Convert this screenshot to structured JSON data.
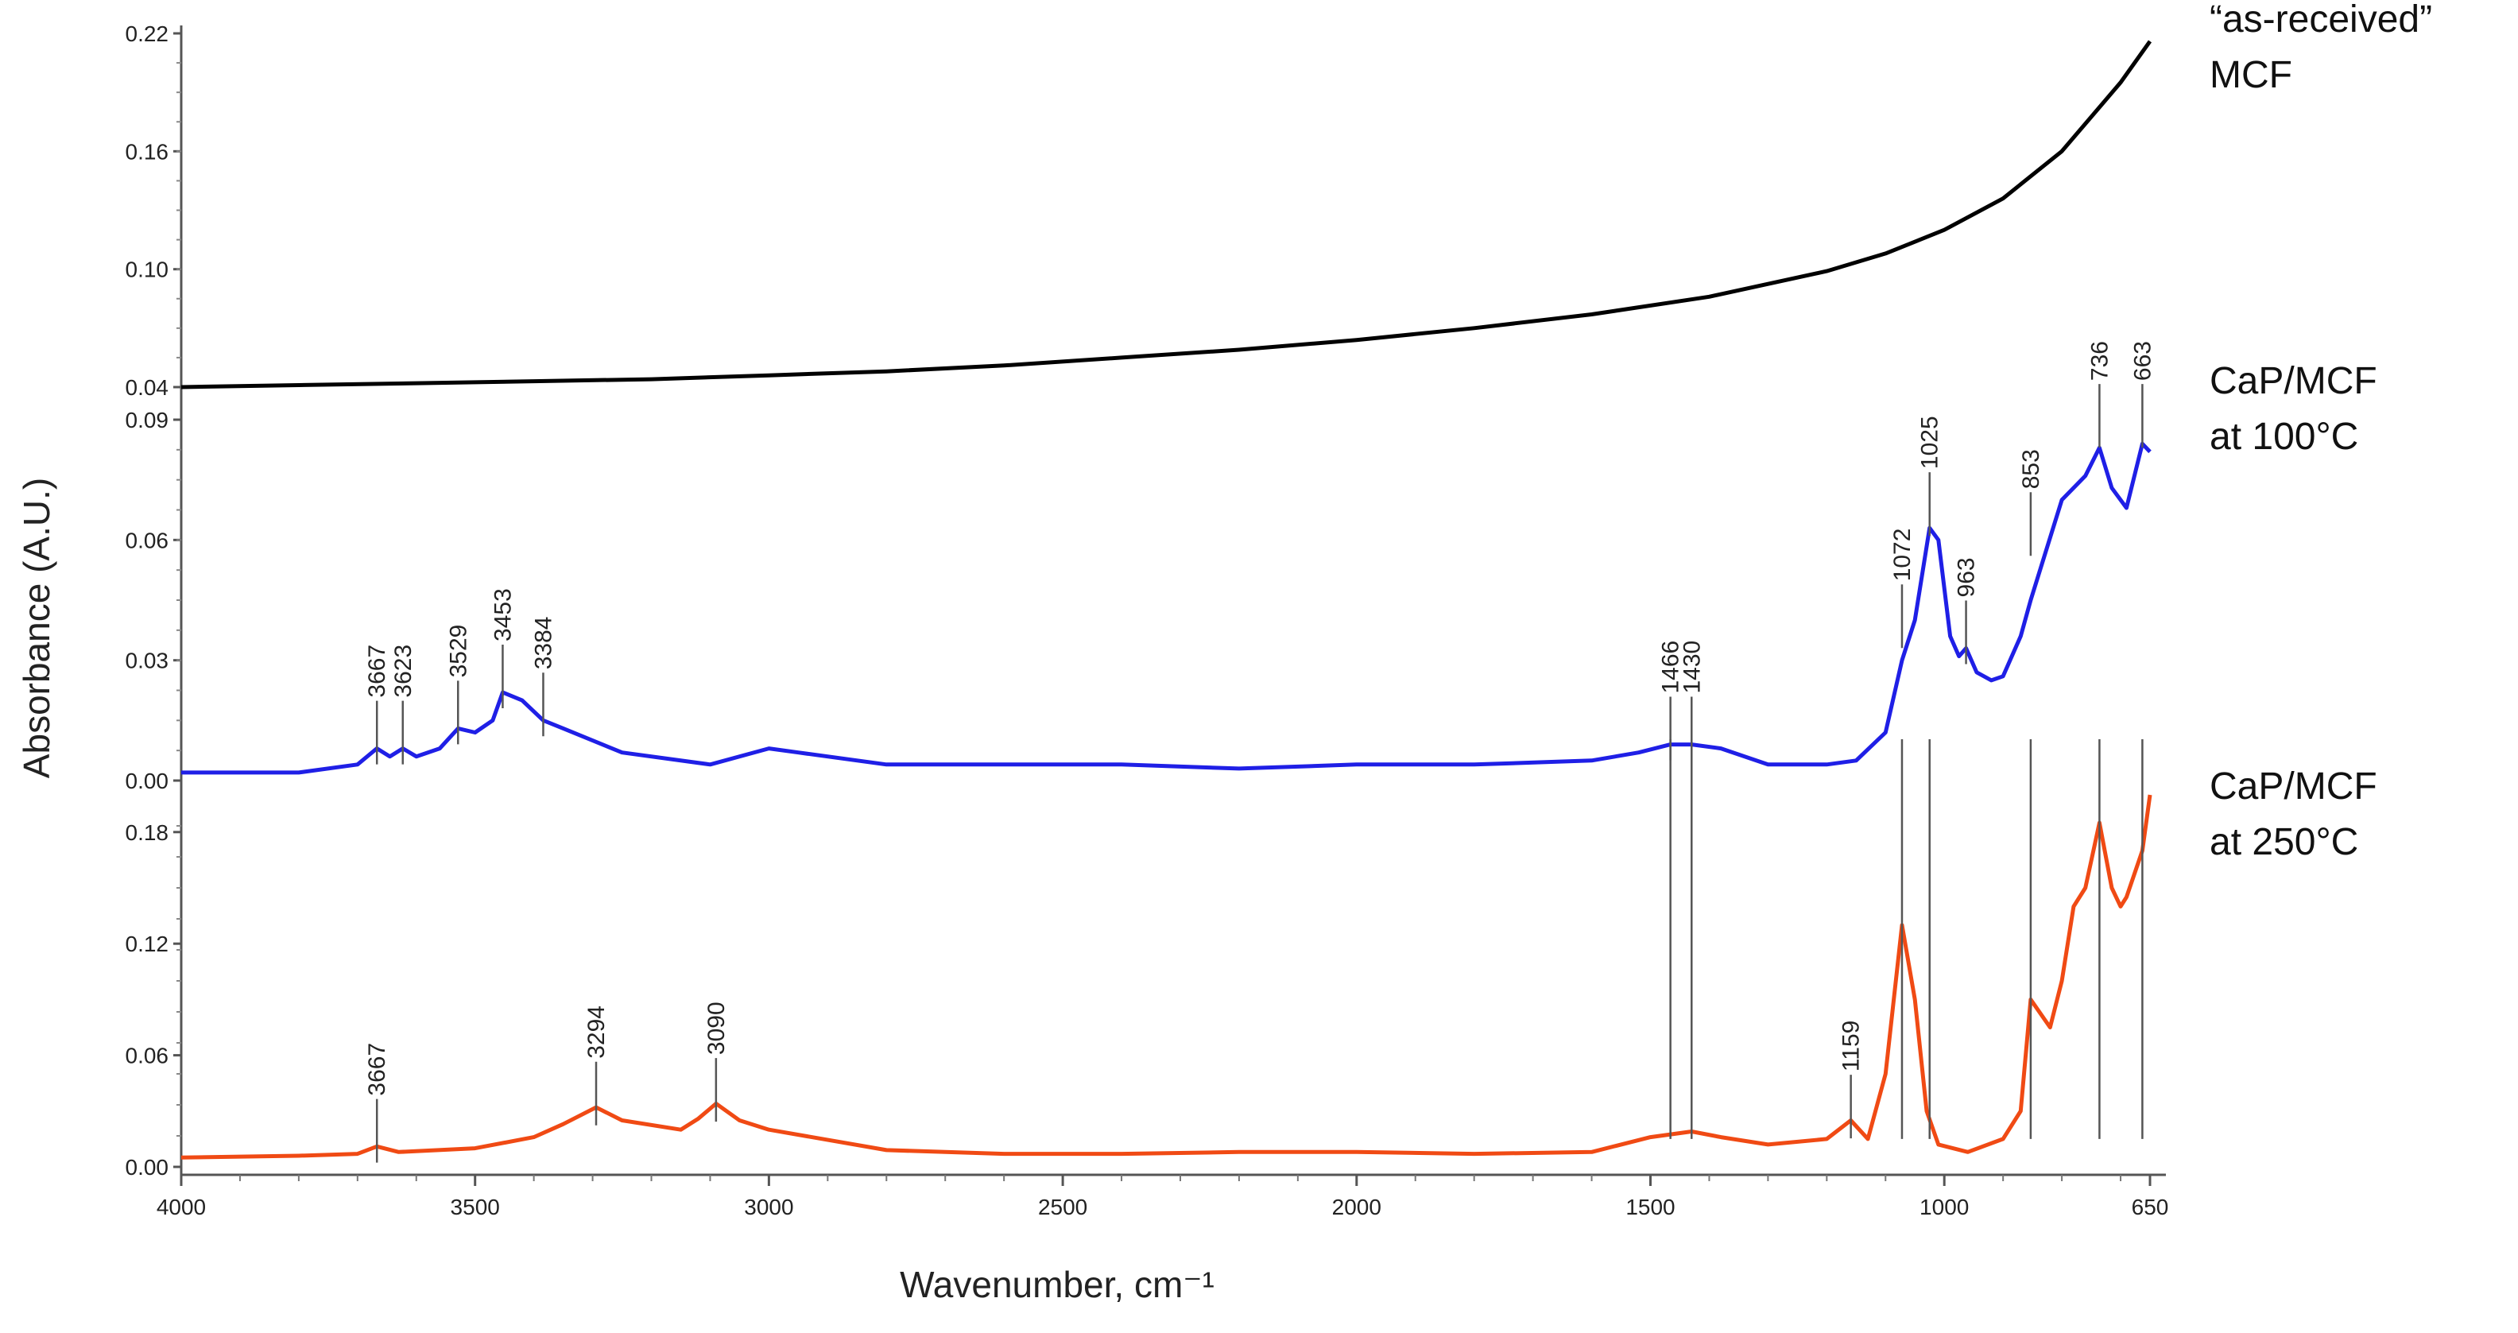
{
  "chart_data": {
    "type": "line",
    "xlabel": "Wavenumber, cm⁻¹",
    "ylabel": "Absorbance (A.U.)",
    "x_range": [
      4000,
      650
    ],
    "x_ticks": [
      4000,
      3500,
      3000,
      2500,
      2000,
      1500,
      1000,
      650
    ],
    "panels": [
      {
        "name": "“as-received” MCF",
        "label_lines": [
          "“as-received”",
          "MCF"
        ],
        "color": "#000000",
        "ylim": [
          0.04,
          0.22
        ],
        "y_ticks": [
          "0.04",
          "0.10",
          "0.16",
          "0.22"
        ],
        "x": [
          4000,
          3800,
          3600,
          3400,
          3200,
          3000,
          2800,
          2600,
          2400,
          2200,
          2000,
          1800,
          1600,
          1400,
          1200,
          1100,
          1000,
          900,
          800,
          700,
          650
        ],
        "y": [
          0.04,
          0.041,
          0.042,
          0.043,
          0.044,
          0.046,
          0.048,
          0.051,
          0.055,
          0.059,
          0.064,
          0.07,
          0.077,
          0.086,
          0.099,
          0.108,
          0.12,
          0.136,
          0.16,
          0.195,
          0.216
        ],
        "peaks": []
      },
      {
        "name": "CaP/MCF at 100°C",
        "label_lines": [
          "CaP/MCF",
          "at 100°C"
        ],
        "color": "#1f1fe6",
        "ylim": [
          0.0,
          0.09
        ],
        "y_ticks": [
          "0.00",
          "0.03",
          "0.06",
          "0.09"
        ],
        "x": [
          4000,
          3800,
          3700,
          3667,
          3645,
          3623,
          3600,
          3560,
          3529,
          3500,
          3470,
          3453,
          3420,
          3384,
          3350,
          3250,
          3100,
          3000,
          2950,
          2800,
          2600,
          2400,
          2200,
          2000,
          1800,
          1600,
          1520,
          1466,
          1430,
          1380,
          1300,
          1200,
          1150,
          1100,
          1072,
          1050,
          1025,
          1010,
          990,
          975,
          963,
          945,
          920,
          900,
          870,
          853,
          800,
          760,
          736,
          715,
          690,
          663,
          650
        ],
        "y": [
          0.002,
          0.002,
          0.004,
          0.008,
          0.006,
          0.008,
          0.006,
          0.008,
          0.013,
          0.012,
          0.015,
          0.022,
          0.02,
          0.015,
          0.013,
          0.007,
          0.004,
          0.008,
          0.007,
          0.004,
          0.004,
          0.004,
          0.003,
          0.004,
          0.004,
          0.005,
          0.007,
          0.009,
          0.009,
          0.008,
          0.004,
          0.004,
          0.005,
          0.012,
          0.03,
          0.04,
          0.063,
          0.06,
          0.036,
          0.031,
          0.033,
          0.027,
          0.025,
          0.026,
          0.036,
          0.045,
          0.07,
          0.076,
          0.083,
          0.073,
          0.068,
          0.084,
          0.082
        ],
        "peaks": [
          {
            "label": "3667",
            "x": 3667,
            "y": 0.009
          },
          {
            "label": "3623",
            "x": 3623,
            "y": 0.009
          },
          {
            "label": "3529",
            "x": 3529,
            "y": 0.014
          },
          {
            "label": "3453",
            "x": 3453,
            "y": 0.023
          },
          {
            "label": "3384",
            "x": 3384,
            "y": 0.016
          },
          {
            "label": "1466",
            "x": 1466,
            "y": 0.01
          },
          {
            "label": "1430",
            "x": 1430,
            "y": 0.01
          },
          {
            "label": "1072",
            "x": 1072,
            "y": 0.038
          },
          {
            "label": "1025",
            "x": 1025,
            "y": 0.066
          },
          {
            "label": "963",
            "x": 963,
            "y": 0.034
          },
          {
            "label": "853",
            "x": 853,
            "y": 0.061
          },
          {
            "label": "736",
            "x": 736,
            "y": 0.088
          },
          {
            "label": "663",
            "x": 663,
            "y": 0.088
          }
        ]
      },
      {
        "name": "CaP/MCF at 250°C",
        "label_lines": [
          "CaP/MCF",
          "at 250°C"
        ],
        "color": "#f04a14",
        "ylim": [
          0.0,
          0.2
        ],
        "y_ticks": [
          "0.00",
          "0.06",
          "0.12",
          "0.18"
        ],
        "x": [
          4000,
          3800,
          3700,
          3667,
          3630,
          3500,
          3400,
          3350,
          3294,
          3250,
          3150,
          3120,
          3090,
          3050,
          3000,
          2800,
          2600,
          2400,
          2200,
          2000,
          1800,
          1600,
          1500,
          1430,
          1380,
          1300,
          1200,
          1159,
          1130,
          1100,
          1072,
          1050,
          1030,
          1010,
          960,
          900,
          870,
          853,
          820,
          800,
          780,
          760,
          736,
          715,
          700,
          690,
          663,
          650
        ],
        "y": [
          0.005,
          0.006,
          0.007,
          0.011,
          0.008,
          0.01,
          0.016,
          0.023,
          0.032,
          0.025,
          0.02,
          0.026,
          0.034,
          0.025,
          0.02,
          0.009,
          0.007,
          0.007,
          0.008,
          0.008,
          0.007,
          0.008,
          0.016,
          0.019,
          0.016,
          0.012,
          0.015,
          0.025,
          0.015,
          0.05,
          0.13,
          0.09,
          0.03,
          0.012,
          0.008,
          0.015,
          0.03,
          0.09,
          0.075,
          0.1,
          0.14,
          0.15,
          0.185,
          0.15,
          0.14,
          0.145,
          0.17,
          0.2
        ],
        "peaks": [
          {
            "label": "3667",
            "x": 3667,
            "y": 0.013
          },
          {
            "label": "3294",
            "x": 3294,
            "y": 0.033
          },
          {
            "label": "3090",
            "x": 3090,
            "y": 0.035
          },
          {
            "label": "1159",
            "x": 1159,
            "y": 0.026
          }
        ]
      }
    ]
  }
}
